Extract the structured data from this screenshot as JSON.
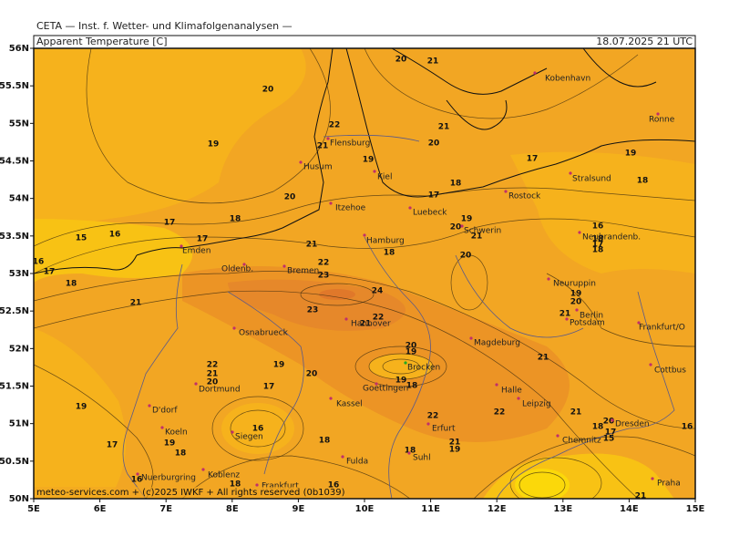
{
  "header": {
    "title": "CETA — Inst. f. Wetter- und Klimafolgenanalysen —",
    "parameter": "Apparent Temperature [C]",
    "time": "18.07.2025 21 UTC"
  },
  "axes": {
    "y": [
      "56N",
      "55.5N",
      "55N",
      "54.5N",
      "54N",
      "53.5N",
      "53N",
      "52.5N",
      "52N",
      "51.5N",
      "51N",
      "50.5N",
      "50N"
    ],
    "x": [
      "5E",
      "6E",
      "7E",
      "8E",
      "9E",
      "10E",
      "11E",
      "12E",
      "13E",
      "14E",
      "15E"
    ]
  },
  "cities": [
    "Kobenhavn",
    "Ronne",
    "Flensburg",
    "Husum",
    "Kiel",
    "Stralsund",
    "Rostock",
    "Itzehoe",
    "Luebeck",
    "Schwerin",
    "Neubrandenb.",
    "Hamburg",
    "Emden",
    "Oldenb.",
    "Bremen",
    "Neuruppin",
    "Berlin",
    "Potsdam",
    "Frankfurt/O",
    "Osnabrueck",
    "Hannover",
    "Magdeburg",
    "Cottbus",
    "Dortmund",
    "Goettingen",
    "Kassel",
    "Halle",
    "Leipzig",
    "D'dorf",
    "Erfurt",
    "Koeln",
    "Siegen",
    "Dresden",
    "Chemnitz",
    "Fulda",
    "Suhl",
    "Nuerburgring",
    "Koblenz",
    "Frankfurt",
    "Praha",
    "Brocken"
  ],
  "contour_labels": [
    "20",
    "21",
    "20",
    "19",
    "22",
    "21",
    "21",
    "20",
    "19",
    "17",
    "19",
    "18",
    "18",
    "20",
    "17",
    "19",
    "20",
    "21",
    "18",
    "17",
    "16",
    "15",
    "17",
    "16",
    "17",
    "18",
    "21",
    "18",
    "20",
    "16",
    "18",
    "17",
    "18",
    "22",
    "23",
    "24",
    "19",
    "20",
    "21",
    "21",
    "23",
    "22",
    "21",
    "20",
    "19",
    "21",
    "22",
    "21",
    "20",
    "19",
    "20",
    "17",
    "19",
    "18",
    "22",
    "21",
    "19",
    "16",
    "22",
    "18",
    "21",
    "19",
    "18",
    "19",
    "18",
    "17",
    "16",
    "18",
    "16",
    "21",
    "20",
    "18",
    "17",
    "15",
    "16"
  ],
  "footer": "meteo-services.com + (c)2025 IWKF + All rights reserved (0b1039)"
}
